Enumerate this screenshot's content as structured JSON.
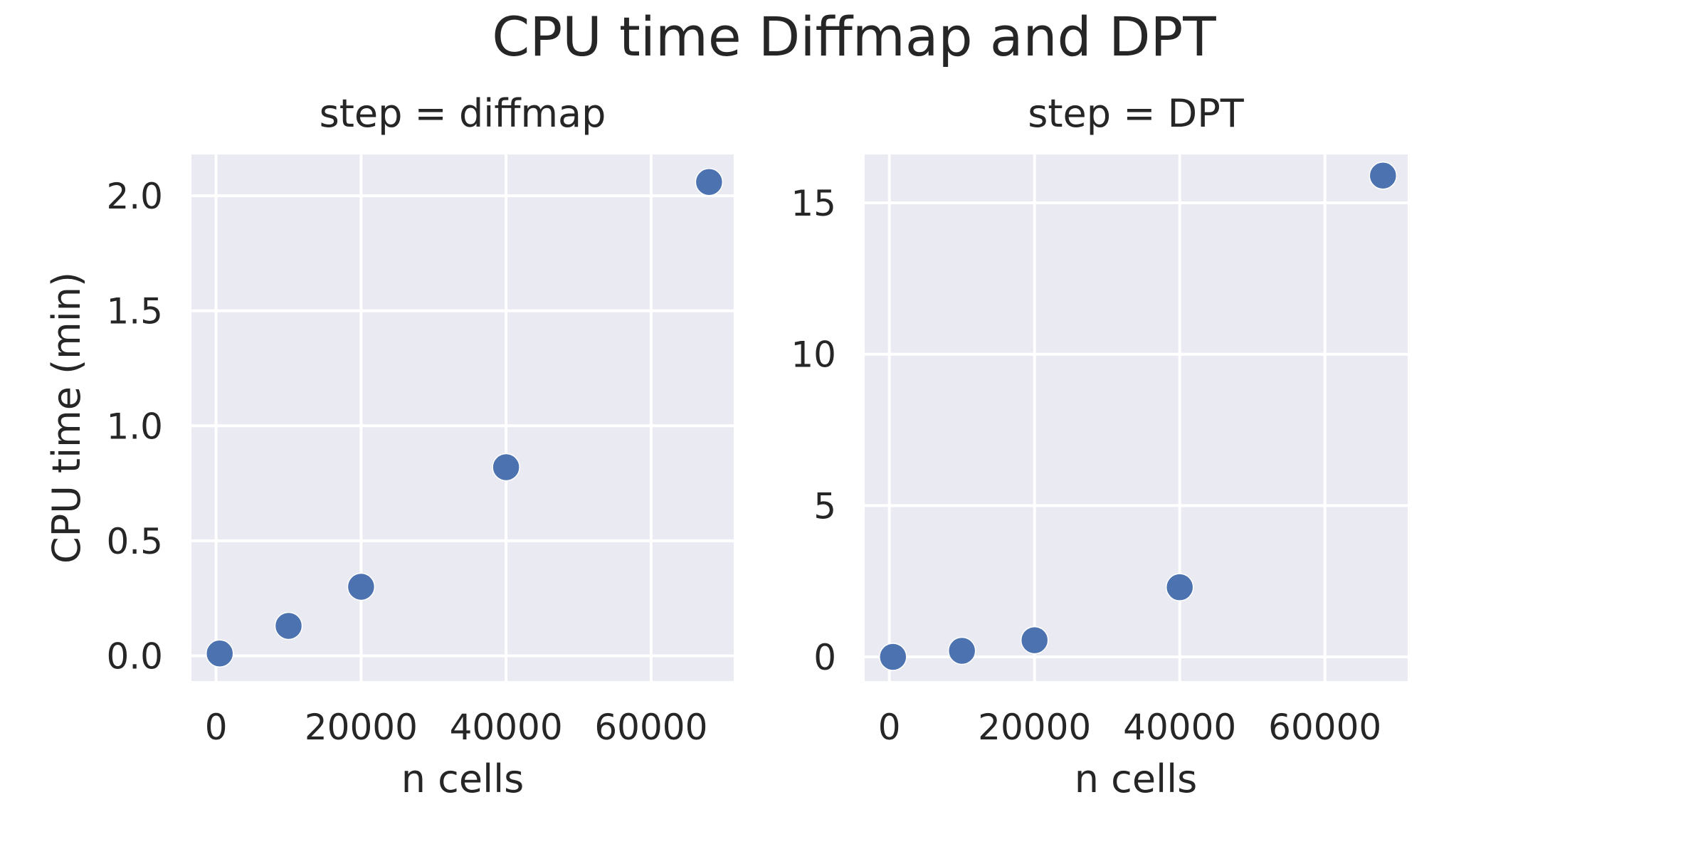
{
  "figure_title": "CPU time Diffmap and DPT",
  "colors": {
    "panel_bg": "#eaeaf2",
    "grid": "#ffffff",
    "marker": "#4c72b0",
    "text": "#262626"
  },
  "chart_data": [
    {
      "type": "scatter",
      "title": "step = diffmap",
      "xlabel": "n cells",
      "ylabel": "CPU time (min)",
      "xlim": [
        -3400,
        71400
      ],
      "ylim": [
        -0.11,
        2.18
      ],
      "xticks": [
        0,
        20000,
        40000,
        60000
      ],
      "xtick_labels": [
        "0",
        "20000",
        "40000",
        "60000"
      ],
      "yticks": [
        0.0,
        0.5,
        1.0,
        1.5,
        2.0
      ],
      "ytick_labels": [
        "0.0",
        "0.5",
        "1.0",
        "1.5",
        "2.0"
      ],
      "grid": true,
      "series": [
        {
          "x": [
            500,
            10000,
            20000,
            40000,
            68000
          ],
          "y": [
            0.01,
            0.13,
            0.3,
            0.82,
            2.06
          ]
        }
      ]
    },
    {
      "type": "scatter",
      "title": "step = DPT",
      "xlabel": "n cells",
      "ylabel": "",
      "xlim": [
        -3400,
        71400
      ],
      "ylim": [
        -0.8,
        16.6
      ],
      "xticks": [
        0,
        20000,
        40000,
        60000
      ],
      "xtick_labels": [
        "0",
        "20000",
        "40000",
        "60000"
      ],
      "yticks": [
        0,
        5,
        10,
        15
      ],
      "ytick_labels": [
        "0",
        "5",
        "10",
        "15"
      ],
      "grid": true,
      "series": [
        {
          "x": [
            500,
            10000,
            20000,
            40000,
            68000
          ],
          "y": [
            0.0,
            0.2,
            0.55,
            2.3,
            15.9
          ]
        }
      ]
    }
  ]
}
